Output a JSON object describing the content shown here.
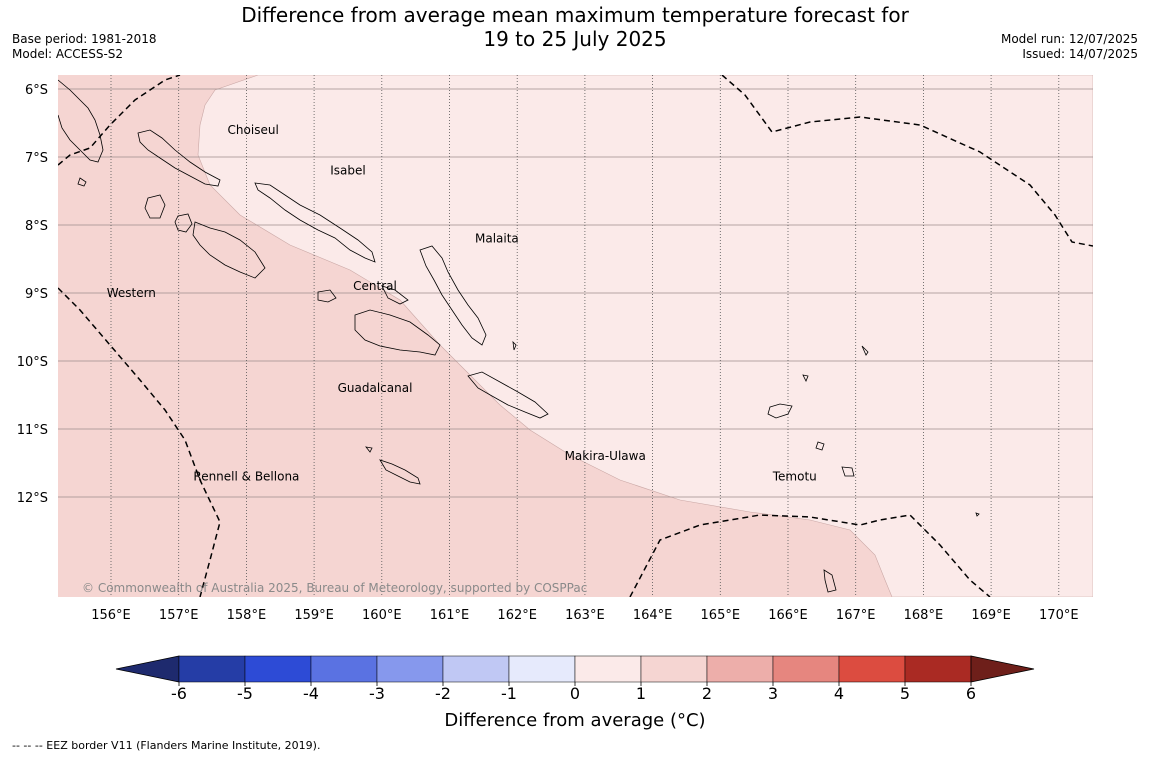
{
  "title": {
    "line1": "Difference from average mean maximum temperature forecast for",
    "line2": "19 to 25 July 2025"
  },
  "meta_left": {
    "base_period": "Base period: 1981-2018",
    "model": "Model: ACCESS-S2"
  },
  "meta_right": {
    "model_run": "Model run: 12/07/2025",
    "issued": "Issued: 14/07/2025"
  },
  "map": {
    "lon_ticks": [
      "156°E",
      "157°E",
      "158°E",
      "159°E",
      "160°E",
      "161°E",
      "162°E",
      "163°E",
      "164°E",
      "165°E",
      "166°E",
      "167°E",
      "168°E",
      "169°E",
      "170°E"
    ],
    "lat_ticks": [
      "6°S",
      "7°S",
      "8°S",
      "9°S",
      "10°S",
      "11°S",
      "12°S"
    ],
    "lon_range": [
      155.2,
      170.45
    ],
    "lat_range": [
      -5.8,
      -13.5
    ],
    "copyright": "© Commonwealth of Australia 2025, Bureau of Meteorology, supported by COSPPac",
    "regions": [
      {
        "name": "Choiseul",
        "lon": 158.1,
        "lat": -6.6
      },
      {
        "name": "Isabel",
        "lon": 159.5,
        "lat": -7.2
      },
      {
        "name": "Malaita",
        "lon": 161.7,
        "lat": -8.2
      },
      {
        "name": "Western",
        "lon": 156.3,
        "lat": -9.0
      },
      {
        "name": "Central",
        "lon": 159.9,
        "lat": -8.9
      },
      {
        "name": "Guadalcanal",
        "lon": 159.9,
        "lat": -10.4
      },
      {
        "name": "Makira-Ulawa",
        "lon": 163.3,
        "lat": -11.4
      },
      {
        "name": "Rennell & Bellona",
        "lon": 158.0,
        "lat": -11.7
      },
      {
        "name": "Temotu",
        "lon": 166.1,
        "lat": -11.7
      }
    ],
    "anomaly_zones": [
      {
        "range": "1 to 2",
        "color": "#f5d5d2"
      },
      {
        "range": "0 to 1",
        "color": "#fbeae9"
      }
    ]
  },
  "colorbar": {
    "title": "Difference from average (°C)",
    "labels": [
      "-6",
      "-5",
      "-4",
      "-3",
      "-2",
      "-1",
      "0",
      "1",
      "2",
      "3",
      "4",
      "5",
      "6"
    ],
    "colors": [
      "#253da6",
      "#2d4bd6",
      "#5a72e2",
      "#8698ed",
      "#c0c8f4",
      "#e6eafc",
      "#fbeae9",
      "#f5d5d2",
      "#edaeaa",
      "#e6867f",
      "#dc4c40",
      "#aa2a23"
    ],
    "under_color": "#1e2a6e",
    "over_color": "#6e1f1a"
  },
  "legend_note": "--  --  -- EEZ border V11 (Flanders Marine Institute, 2019)."
}
